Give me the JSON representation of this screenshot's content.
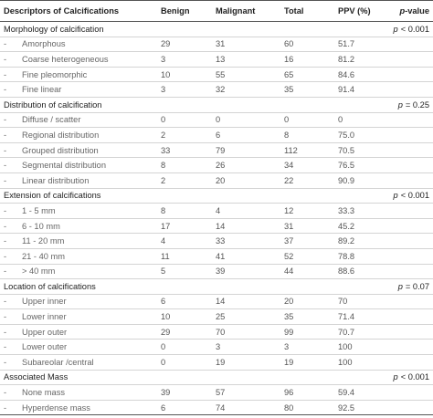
{
  "table": {
    "header": {
      "descriptor": "Descriptors of Calcifications",
      "benign": "Benign",
      "malignant": "Malignant",
      "total": "Total",
      "ppv": "PPV (%)",
      "p_symbol": "p",
      "p_rest": "-value"
    },
    "groups": [
      {
        "title": "Morphology of calcification",
        "p": {
          "symbol": "p",
          "text": "< 0.001"
        },
        "rows": [
          {
            "marker": "-",
            "label": "Amorphous",
            "benign": "29",
            "malignant": "31",
            "total": "60",
            "ppv": "51.7"
          },
          {
            "marker": "-",
            "label": "Coarse heterogeneous",
            "benign": "3",
            "malignant": "13",
            "total": "16",
            "ppv": "81.2"
          },
          {
            "marker": "-",
            "label": "Fine pleomorphic",
            "benign": "10",
            "malignant": "55",
            "total": "65",
            "ppv": "84.6"
          },
          {
            "marker": "-",
            "label": "Fine linear",
            "benign": "3",
            "malignant": "32",
            "total": "35",
            "ppv": "91.4"
          }
        ]
      },
      {
        "title": "Distribution of calcification",
        "p": {
          "symbol": "p",
          "text": "= 0.25"
        },
        "rows": [
          {
            "marker": "-",
            "label": "Diffuse / scatter",
            "benign": "0",
            "malignant": "0",
            "total": "0",
            "ppv": "0"
          },
          {
            "marker": "-",
            "label": "Regional distribution",
            "benign": "2",
            "malignant": "6",
            "total": "8",
            "ppv": "75.0"
          },
          {
            "marker": "-",
            "label": "Grouped distribution",
            "benign": "33",
            "malignant": "79",
            "total": "112",
            "ppv": "70.5"
          },
          {
            "marker": "-",
            "label": "Segmental distribution",
            "benign": "8",
            "malignant": "26",
            "total": "34",
            "ppv": "76.5"
          },
          {
            "marker": "-",
            "label": "Linear distribution",
            "benign": "2",
            "malignant": "20",
            "total": "22",
            "ppv": "90.9"
          }
        ]
      },
      {
        "title": "Extension of calcifications",
        "p": {
          "symbol": "p",
          "text": "< 0.001"
        },
        "rows": [
          {
            "marker": "-",
            "label": "1 - 5 mm",
            "benign": "8",
            "malignant": "4",
            "total": "12",
            "ppv": "33.3"
          },
          {
            "marker": "-",
            "label": "6 - 10 mm",
            "benign": "17",
            "malignant": "14",
            "total": "31",
            "ppv": "45.2"
          },
          {
            "marker": "-",
            "label": "11 - 20 mm",
            "benign": "4",
            "malignant": "33",
            "total": "37",
            "ppv": "89.2"
          },
          {
            "marker": "-",
            "label": "21 - 40 mm",
            "benign": "11",
            "malignant": "41",
            "total": "52",
            "ppv": "78.8"
          },
          {
            "marker": "-",
            "label": "> 40 mm",
            "benign": "5",
            "malignant": "39",
            "total": "44",
            "ppv": "88.6"
          }
        ]
      },
      {
        "title": "Location of calcifications",
        "p": {
          "symbol": "p",
          "text": "= 0.07"
        },
        "rows": [
          {
            "marker": "-",
            "label": "Upper inner",
            "benign": "6",
            "malignant": "14",
            "total": "20",
            "ppv": "70"
          },
          {
            "marker": "-",
            "label": "Lower inner",
            "benign": "10",
            "malignant": "25",
            "total": "35",
            "ppv": "71.4"
          },
          {
            "marker": "-",
            "label": "Upper outer",
            "benign": "29",
            "malignant": "70",
            "total": "99",
            "ppv": "70.7"
          },
          {
            "marker": "-",
            "label": "Lower outer",
            "benign": "0",
            "malignant": "3",
            "total": "3",
            "ppv": "100"
          },
          {
            "marker": "-",
            "label": "Subareolar /central",
            "benign": "0",
            "malignant": "19",
            "total": "19",
            "ppv": "100"
          }
        ]
      },
      {
        "title": "Associated Mass",
        "p": {
          "symbol": "p",
          "text": "< 0.001"
        },
        "rows": [
          {
            "marker": "-",
            "label": "None mass",
            "benign": "39",
            "malignant": "57",
            "total": "96",
            "ppv": "59.4"
          },
          {
            "marker": "-",
            "label": "Hyperdense mass",
            "benign": "6",
            "malignant": "74",
            "total": "80",
            "ppv": "92.5"
          }
        ]
      }
    ]
  }
}
